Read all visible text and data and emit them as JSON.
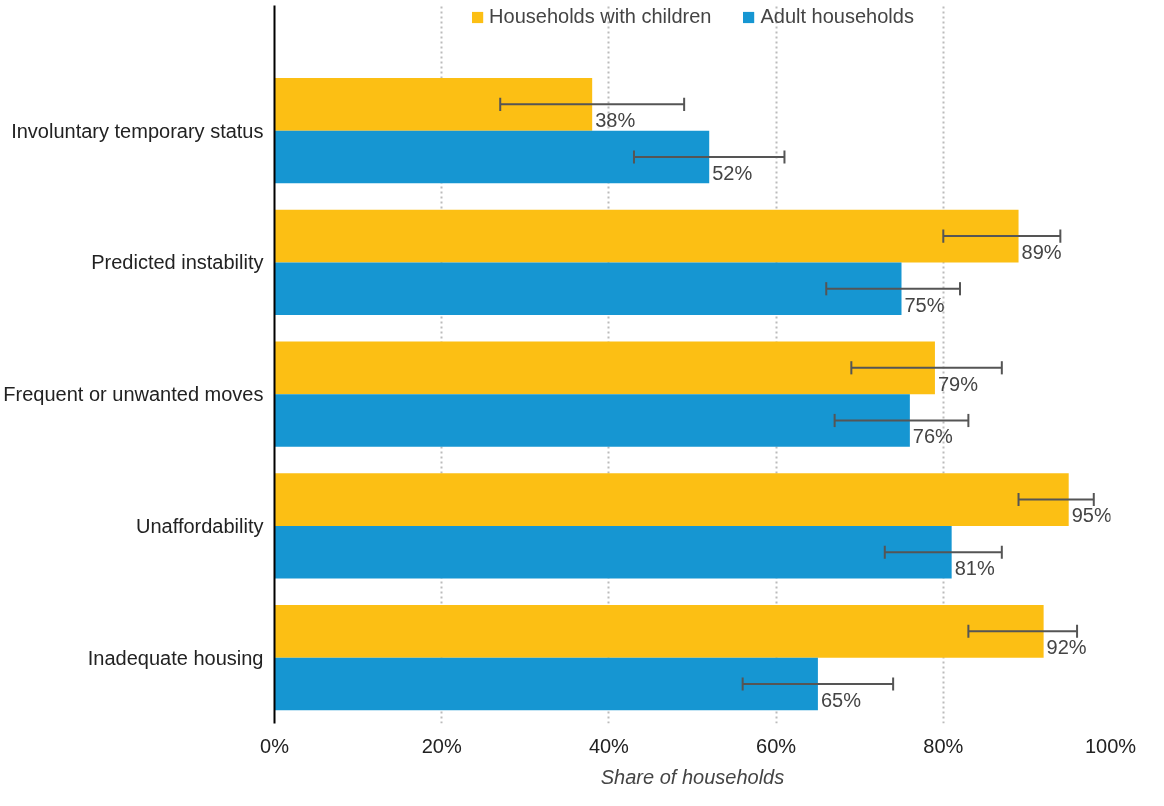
{
  "chart_data": {
    "type": "bar",
    "orientation": "horizontal",
    "xlabel": "Share of households",
    "categories": [
      "Involuntary temporary status",
      "Predicted instability",
      "Frequent or unwanted moves",
      "Unaffordability",
      "Inadequate housing"
    ],
    "series": [
      {
        "name": "Households with children",
        "color": "#fcbf14",
        "values": [
          38,
          89,
          79,
          95,
          92
        ],
        "errors": [
          [
            27,
            49
          ],
          [
            80,
            94
          ],
          [
            69,
            87
          ],
          [
            89,
            98
          ],
          [
            83,
            96
          ]
        ],
        "value_labels": [
          "38%",
          "89%",
          "79%",
          "95%",
          "92%"
        ]
      },
      {
        "name": "Adult households",
        "color": "#1696d2",
        "values": [
          52,
          75,
          76,
          81,
          65
        ],
        "errors": [
          [
            43,
            61
          ],
          [
            66,
            82
          ],
          [
            67,
            83
          ],
          [
            73,
            87
          ],
          [
            56,
            74
          ]
        ],
        "value_labels": [
          "52%",
          "75%",
          "76%",
          "81%",
          "65%"
        ]
      }
    ],
    "xlim": [
      0,
      100
    ],
    "xticks": [
      {
        "value": 0,
        "label": "0%"
      },
      {
        "value": 20,
        "label": "20%"
      },
      {
        "value": 40,
        "label": "40%"
      },
      {
        "value": 60,
        "label": "60%"
      },
      {
        "value": 80,
        "label": "80%"
      },
      {
        "value": 100,
        "label": "100%"
      }
    ],
    "grid": "x",
    "legend": "top"
  }
}
